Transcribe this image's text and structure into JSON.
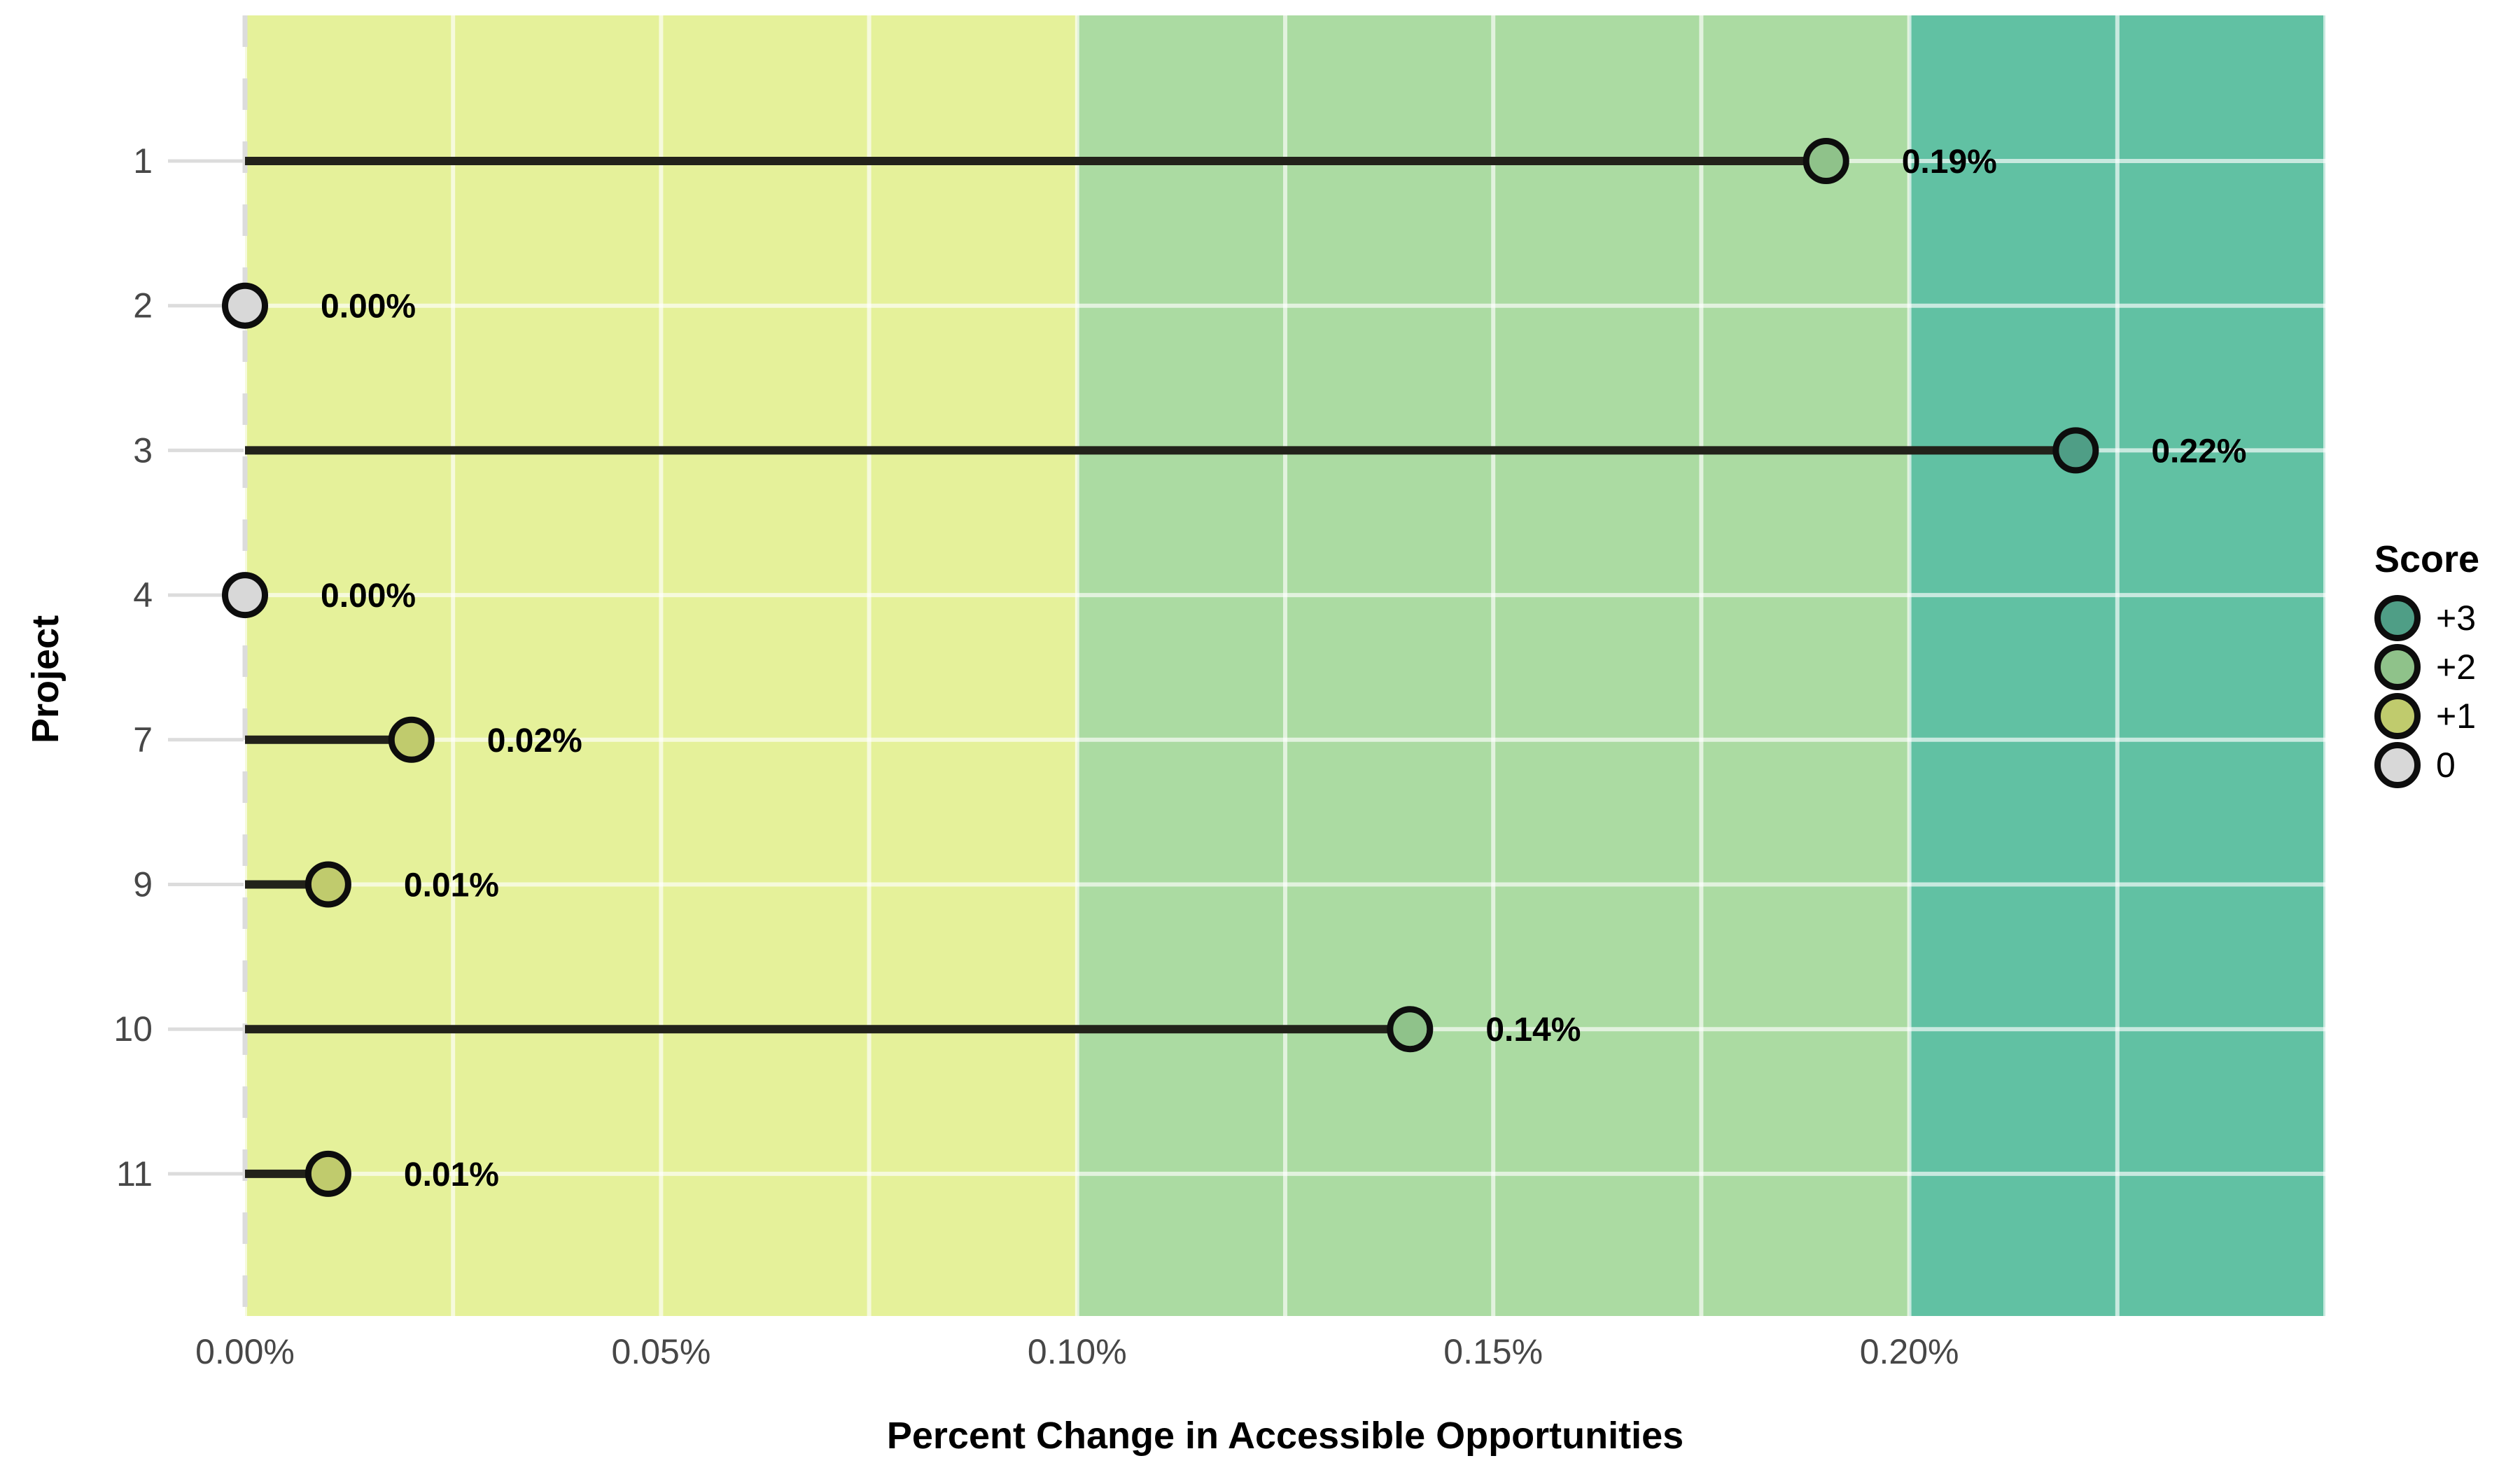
{
  "chart_data": {
    "type": "lollipop",
    "title": "",
    "xlabel": "Percent Change in Accessible Opportunities",
    "ylabel": "Project",
    "categories": [
      "1",
      "2",
      "3",
      "4",
      "7",
      "9",
      "10",
      "11"
    ],
    "values": [
      0.19,
      0.0,
      0.22,
      0.0,
      0.02,
      0.01,
      0.14,
      0.01
    ],
    "value_labels": [
      "0.19%",
      "0.00%",
      "0.22%",
      "0.00%",
      "0.02%",
      "0.01%",
      "0.14%",
      "0.01%"
    ],
    "scores": [
      "+2",
      "0",
      "+3",
      "0",
      "+1",
      "+1",
      "+2",
      "+1"
    ],
    "xlim": [
      0,
      0.25
    ],
    "x_ticks": [
      {
        "value": 0.0,
        "label": "0.00%"
      },
      {
        "value": 0.05,
        "label": "0.05%"
      },
      {
        "value": 0.1,
        "label": "0.10%"
      },
      {
        "value": 0.15,
        "label": "0.15%"
      },
      {
        "value": 0.2,
        "label": "0.20%"
      }
    ],
    "x_grid_step": 0.025,
    "grid": true,
    "bands": [
      {
        "from": 0.0,
        "to": 0.1,
        "score": "+1",
        "color": "#e5f19a"
      },
      {
        "from": 0.1,
        "to": 0.2,
        "score": "+2",
        "color": "#abdba2"
      },
      {
        "from": 0.2,
        "to": 0.25,
        "score": "+3",
        "color": "#61c1a3"
      }
    ],
    "score_colors": {
      "+3": "#4f9e86",
      "+2": "#8fc28a",
      "+1": "#c0cb6d",
      "0": "#d8d8d8"
    },
    "zero_reference_line": {
      "value": 0,
      "style": "dashed",
      "color": "#dcdcdc"
    },
    "legend": {
      "title": "Score",
      "position": "right",
      "items": [
        {
          "label": "+3",
          "color": "#4f9e86"
        },
        {
          "label": "+2",
          "color": "#8fc28a"
        },
        {
          "label": "+1",
          "color": "#c0cb6d"
        },
        {
          "label": "0",
          "color": "#d8d8d8"
        }
      ]
    },
    "styles": {
      "stem_color": "#22221a",
      "dot_stroke_color": "#0d0d0d",
      "tick_label_color": "#474747",
      "gridline_color": "rgba(255,255,255,0.65)",
      "value_label_color": "#000000",
      "axis_tick_mark_color": "#dcdcdc"
    }
  }
}
